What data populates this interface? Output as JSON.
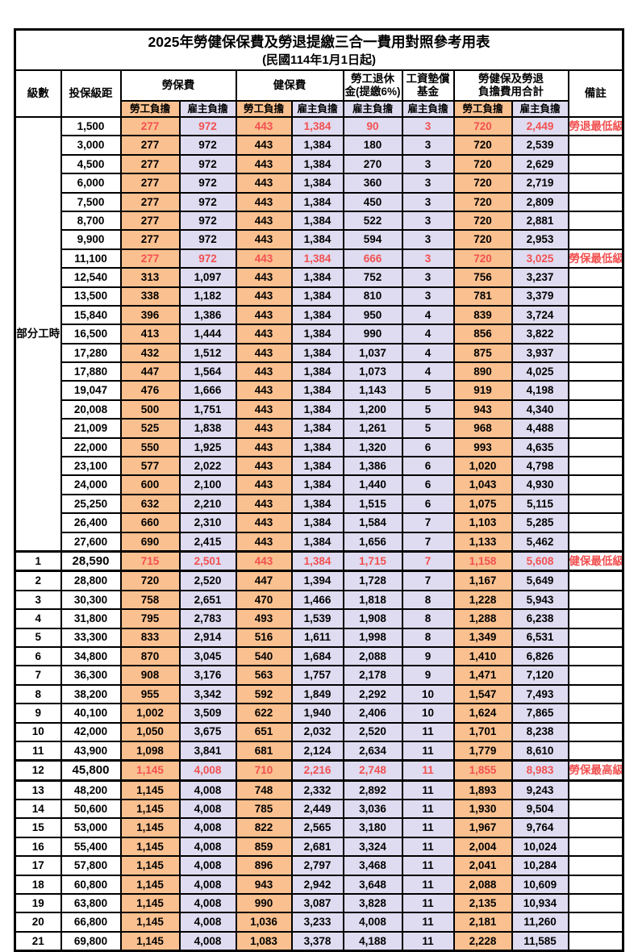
{
  "title": "2025年勞健保保費及勞退提繳三合一費用對照參考用表",
  "subtitle": "(民國114年1月1日起)",
  "columns": {
    "level": "級數",
    "bracket": "投保級距",
    "labor_insurance": "勞保費",
    "health_insurance": "健保費",
    "pension_line1": "勞工退休",
    "pension_line2": "金(提繳6%)",
    "fund_line1": "工資墊償",
    "fund_line2": "基金",
    "total_line1": "勞健保及勞退",
    "total_line2": "負擔費用合計",
    "remark": "備註",
    "employee_burden": "勞工負擔",
    "employer_burden": "雇主負擔"
  },
  "part_time_label": "部分工時",
  "part_time_rowspan": 23,
  "colors": {
    "employee_bg": "#FAC08F",
    "employer_bg": "#DFDBF0",
    "highlight_text": "#F25050",
    "border": "#000000"
  },
  "rows": [
    {
      "level": "",
      "bracket": "1,500",
      "values": [
        "277",
        "972",
        "443",
        "1,384",
        "90",
        "3",
        "720",
        "2,449"
      ],
      "remark": "勞退最低級距",
      "red": true,
      "thick": false
    },
    {
      "level": "",
      "bracket": "3,000",
      "values": [
        "277",
        "972",
        "443",
        "1,384",
        "180",
        "3",
        "720",
        "2,539"
      ],
      "remark": "",
      "red": false,
      "thick": false
    },
    {
      "level": "",
      "bracket": "4,500",
      "values": [
        "277",
        "972",
        "443",
        "1,384",
        "270",
        "3",
        "720",
        "2,629"
      ],
      "remark": "",
      "red": false,
      "thick": false
    },
    {
      "level": "",
      "bracket": "6,000",
      "values": [
        "277",
        "972",
        "443",
        "1,384",
        "360",
        "3",
        "720",
        "2,719"
      ],
      "remark": "",
      "red": false,
      "thick": false
    },
    {
      "level": "",
      "bracket": "7,500",
      "values": [
        "277",
        "972",
        "443",
        "1,384",
        "450",
        "3",
        "720",
        "2,809"
      ],
      "remark": "",
      "red": false,
      "thick": false
    },
    {
      "level": "",
      "bracket": "8,700",
      "values": [
        "277",
        "972",
        "443",
        "1,384",
        "522",
        "3",
        "720",
        "2,881"
      ],
      "remark": "",
      "red": false,
      "thick": false
    },
    {
      "level": "",
      "bracket": "9,900",
      "values": [
        "277",
        "972",
        "443",
        "1,384",
        "594",
        "3",
        "720",
        "2,953"
      ],
      "remark": "",
      "red": false,
      "thick": false
    },
    {
      "level": "",
      "bracket": "11,100",
      "values": [
        "277",
        "972",
        "443",
        "1,384",
        "666",
        "3",
        "720",
        "3,025"
      ],
      "remark": "勞保最低級距",
      "red": true,
      "thick": false
    },
    {
      "level": "",
      "bracket": "12,540",
      "values": [
        "313",
        "1,097",
        "443",
        "1,384",
        "752",
        "3",
        "756",
        "3,237"
      ],
      "remark": "",
      "red": false,
      "thick": false
    },
    {
      "level": "",
      "bracket": "13,500",
      "values": [
        "338",
        "1,182",
        "443",
        "1,384",
        "810",
        "3",
        "781",
        "3,379"
      ],
      "remark": "",
      "red": false,
      "thick": false
    },
    {
      "level": "",
      "bracket": "15,840",
      "values": [
        "396",
        "1,386",
        "443",
        "1,384",
        "950",
        "4",
        "839",
        "3,724"
      ],
      "remark": "",
      "red": false,
      "thick": false
    },
    {
      "level": "",
      "bracket": "16,500",
      "values": [
        "413",
        "1,444",
        "443",
        "1,384",
        "990",
        "4",
        "856",
        "3,822"
      ],
      "remark": "",
      "red": false,
      "thick": false
    },
    {
      "level": "",
      "bracket": "17,280",
      "values": [
        "432",
        "1,512",
        "443",
        "1,384",
        "1,037",
        "4",
        "875",
        "3,937"
      ],
      "remark": "",
      "red": false,
      "thick": false
    },
    {
      "level": "",
      "bracket": "17,880",
      "values": [
        "447",
        "1,564",
        "443",
        "1,384",
        "1,073",
        "4",
        "890",
        "4,025"
      ],
      "remark": "",
      "red": false,
      "thick": false
    },
    {
      "level": "",
      "bracket": "19,047",
      "values": [
        "476",
        "1,666",
        "443",
        "1,384",
        "1,143",
        "5",
        "919",
        "4,198"
      ],
      "remark": "",
      "red": false,
      "thick": false
    },
    {
      "level": "",
      "bracket": "20,008",
      "values": [
        "500",
        "1,751",
        "443",
        "1,384",
        "1,200",
        "5",
        "943",
        "4,340"
      ],
      "remark": "",
      "red": false,
      "thick": false
    },
    {
      "level": "",
      "bracket": "21,009",
      "values": [
        "525",
        "1,838",
        "443",
        "1,384",
        "1,261",
        "5",
        "968",
        "4,488"
      ],
      "remark": "",
      "red": false,
      "thick": false
    },
    {
      "level": "",
      "bracket": "22,000",
      "values": [
        "550",
        "1,925",
        "443",
        "1,384",
        "1,320",
        "6",
        "993",
        "4,635"
      ],
      "remark": "",
      "red": false,
      "thick": false
    },
    {
      "level": "",
      "bracket": "23,100",
      "values": [
        "577",
        "2,022",
        "443",
        "1,384",
        "1,386",
        "6",
        "1,020",
        "4,798"
      ],
      "remark": "",
      "red": false,
      "thick": false
    },
    {
      "level": "",
      "bracket": "24,000",
      "values": [
        "600",
        "2,100",
        "443",
        "1,384",
        "1,440",
        "6",
        "1,043",
        "4,930"
      ],
      "remark": "",
      "red": false,
      "thick": false
    },
    {
      "level": "",
      "bracket": "25,250",
      "values": [
        "632",
        "2,210",
        "443",
        "1,384",
        "1,515",
        "6",
        "1,075",
        "5,115"
      ],
      "remark": "",
      "red": false,
      "thick": false
    },
    {
      "level": "",
      "bracket": "26,400",
      "values": [
        "660",
        "2,310",
        "443",
        "1,384",
        "1,584",
        "7",
        "1,103",
        "5,285"
      ],
      "remark": "",
      "red": false,
      "thick": false
    },
    {
      "level": "",
      "bracket": "27,600",
      "values": [
        "690",
        "2,415",
        "443",
        "1,384",
        "1,656",
        "7",
        "1,133",
        "5,462"
      ],
      "remark": "",
      "red": false,
      "thick": false
    },
    {
      "level": "1",
      "bracket": "28,590",
      "values": [
        "715",
        "2,501",
        "443",
        "1,384",
        "1,715",
        "7",
        "1,158",
        "5,608"
      ],
      "remark": "健保最低級距",
      "red": true,
      "thick": true
    },
    {
      "level": "2",
      "bracket": "28,800",
      "values": [
        "720",
        "2,520",
        "447",
        "1,394",
        "1,728",
        "7",
        "1,167",
        "5,649"
      ],
      "remark": "",
      "red": false,
      "thick": false
    },
    {
      "level": "3",
      "bracket": "30,300",
      "values": [
        "758",
        "2,651",
        "470",
        "1,466",
        "1,818",
        "8",
        "1,228",
        "5,943"
      ],
      "remark": "",
      "red": false,
      "thick": false
    },
    {
      "level": "4",
      "bracket": "31,800",
      "values": [
        "795",
        "2,783",
        "493",
        "1,539",
        "1,908",
        "8",
        "1,288",
        "6,238"
      ],
      "remark": "",
      "red": false,
      "thick": false
    },
    {
      "level": "5",
      "bracket": "33,300",
      "values": [
        "833",
        "2,914",
        "516",
        "1,611",
        "1,998",
        "8",
        "1,349",
        "6,531"
      ],
      "remark": "",
      "red": false,
      "thick": false
    },
    {
      "level": "6",
      "bracket": "34,800",
      "values": [
        "870",
        "3,045",
        "540",
        "1,684",
        "2,088",
        "9",
        "1,410",
        "6,826"
      ],
      "remark": "",
      "red": false,
      "thick": false
    },
    {
      "level": "7",
      "bracket": "36,300",
      "values": [
        "908",
        "3,176",
        "563",
        "1,757",
        "2,178",
        "9",
        "1,471",
        "7,120"
      ],
      "remark": "",
      "red": false,
      "thick": false
    },
    {
      "level": "8",
      "bracket": "38,200",
      "values": [
        "955",
        "3,342",
        "592",
        "1,849",
        "2,292",
        "10",
        "1,547",
        "7,493"
      ],
      "remark": "",
      "red": false,
      "thick": false
    },
    {
      "level": "9",
      "bracket": "40,100",
      "values": [
        "1,002",
        "3,509",
        "622",
        "1,940",
        "2,406",
        "10",
        "1,624",
        "7,865"
      ],
      "remark": "",
      "red": false,
      "thick": false
    },
    {
      "level": "10",
      "bracket": "42,000",
      "values": [
        "1,050",
        "3,675",
        "651",
        "2,032",
        "2,520",
        "11",
        "1,701",
        "8,238"
      ],
      "remark": "",
      "red": false,
      "thick": false
    },
    {
      "level": "11",
      "bracket": "43,900",
      "values": [
        "1,098",
        "3,841",
        "681",
        "2,124",
        "2,634",
        "11",
        "1,779",
        "8,610"
      ],
      "remark": "",
      "red": false,
      "thick": false
    },
    {
      "level": "12",
      "bracket": "45,800",
      "values": [
        "1,145",
        "4,008",
        "710",
        "2,216",
        "2,748",
        "11",
        "1,855",
        "8,983"
      ],
      "remark": "勞保最高級距",
      "red": true,
      "thick": true
    },
    {
      "level": "13",
      "bracket": "48,200",
      "values": [
        "1,145",
        "4,008",
        "748",
        "2,332",
        "2,892",
        "11",
        "1,893",
        "9,243"
      ],
      "remark": "",
      "red": false,
      "thick": false
    },
    {
      "level": "14",
      "bracket": "50,600",
      "values": [
        "1,145",
        "4,008",
        "785",
        "2,449",
        "3,036",
        "11",
        "1,930",
        "9,504"
      ],
      "remark": "",
      "red": false,
      "thick": false
    },
    {
      "level": "15",
      "bracket": "53,000",
      "values": [
        "1,145",
        "4,008",
        "822",
        "2,565",
        "3,180",
        "11",
        "1,967",
        "9,764"
      ],
      "remark": "",
      "red": false,
      "thick": false
    },
    {
      "level": "16",
      "bracket": "55,400",
      "values": [
        "1,145",
        "4,008",
        "859",
        "2,681",
        "3,324",
        "11",
        "2,004",
        "10,024"
      ],
      "remark": "",
      "red": false,
      "thick": false
    },
    {
      "level": "17",
      "bracket": "57,800",
      "values": [
        "1,145",
        "4,008",
        "896",
        "2,797",
        "3,468",
        "11",
        "2,041",
        "10,284"
      ],
      "remark": "",
      "red": false,
      "thick": false
    },
    {
      "level": "18",
      "bracket": "60,800",
      "values": [
        "1,145",
        "4,008",
        "943",
        "2,942",
        "3,648",
        "11",
        "2,088",
        "10,609"
      ],
      "remark": "",
      "red": false,
      "thick": false
    },
    {
      "level": "19",
      "bracket": "63,800",
      "values": [
        "1,145",
        "4,008",
        "990",
        "3,087",
        "3,828",
        "11",
        "2,135",
        "10,934"
      ],
      "remark": "",
      "red": false,
      "thick": false
    },
    {
      "level": "20",
      "bracket": "66,800",
      "values": [
        "1,145",
        "4,008",
        "1,036",
        "3,233",
        "4,008",
        "11",
        "2,181",
        "11,260"
      ],
      "remark": "",
      "red": false,
      "thick": false
    },
    {
      "level": "21",
      "bracket": "69,800",
      "values": [
        "1,145",
        "4,008",
        "1,083",
        "3,378",
        "4,188",
        "11",
        "2,228",
        "11,585"
      ],
      "remark": "",
      "red": false,
      "thick": false
    }
  ]
}
